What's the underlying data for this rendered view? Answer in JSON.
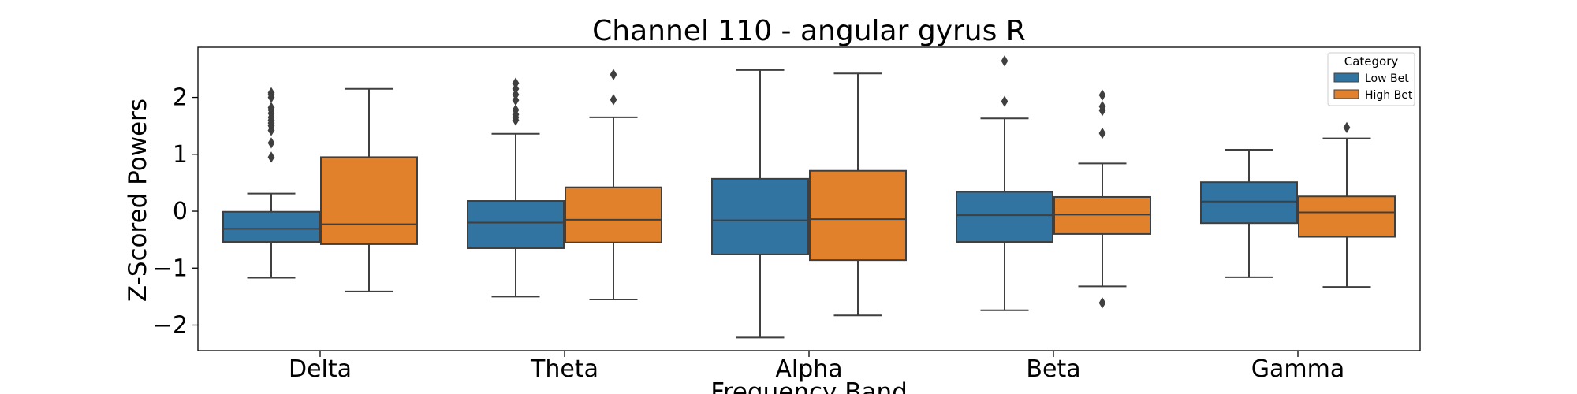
{
  "chart_data": {
    "type": "boxplot",
    "title": "Channel 110 - angular gyrus R",
    "xlabel": "Frequency Band",
    "ylabel": "Z-Scored Powers",
    "categories": [
      "Delta",
      "Theta",
      "Alpha",
      "Beta",
      "Gamma"
    ],
    "ylim": [
      -2.45,
      2.88
    ],
    "yticks": [
      -2,
      -1,
      0,
      1,
      2
    ],
    "ytick_labels": [
      "−2",
      "−1",
      "0",
      "1",
      "2"
    ],
    "grid": false,
    "legend": {
      "title": "Category",
      "placement": "top-right",
      "entries": [
        "Low Bet",
        "High Bet"
      ]
    },
    "series": [
      {
        "name": "Low Bet",
        "color": "#3274a1",
        "boxes": [
          {
            "whisker_low": -1.17,
            "q1": -0.54,
            "median": -0.31,
            "q3": -0.01,
            "whisker_high": 0.31,
            "outliers": [
              0.95,
              1.2,
              1.42,
              1.5,
              1.55,
              1.6,
              1.65,
              1.72,
              1.78,
              1.82,
              2.0,
              2.05,
              2.08
            ]
          },
          {
            "whisker_low": -1.5,
            "q1": -0.65,
            "median": -0.2,
            "q3": 0.18,
            "whisker_high": 1.36,
            "outliers": [
              1.6,
              1.65,
              1.7,
              1.78,
              1.95,
              2.05,
              2.15,
              2.25
            ]
          },
          {
            "whisker_low": -2.22,
            "q1": -0.76,
            "median": -0.16,
            "q3": 0.57,
            "whisker_high": 2.48,
            "outliers": []
          },
          {
            "whisker_low": -1.74,
            "q1": -0.54,
            "median": -0.07,
            "q3": 0.34,
            "whisker_high": 1.63,
            "outliers": [
              1.93,
              2.64
            ]
          },
          {
            "whisker_low": -1.16,
            "q1": -0.21,
            "median": 0.17,
            "q3": 0.51,
            "whisker_high": 1.08,
            "outliers": []
          }
        ]
      },
      {
        "name": "High Bet",
        "color": "#e1812c",
        "boxes": [
          {
            "whisker_low": -1.41,
            "q1": -0.58,
            "median": -0.23,
            "q3": 0.95,
            "whisker_high": 2.15,
            "outliers": []
          },
          {
            "whisker_low": -1.55,
            "q1": -0.55,
            "median": -0.15,
            "q3": 0.42,
            "whisker_high": 1.65,
            "outliers": [
              1.96,
              2.4
            ]
          },
          {
            "whisker_low": -1.83,
            "q1": -0.86,
            "median": -0.14,
            "q3": 0.71,
            "whisker_high": 2.42,
            "outliers": []
          },
          {
            "whisker_low": -1.32,
            "q1": -0.4,
            "median": -0.06,
            "q3": 0.25,
            "whisker_high": 0.84,
            "outliers": [
              1.37,
              1.77,
              1.84,
              2.04,
              -1.61
            ]
          },
          {
            "whisker_low": -1.33,
            "q1": -0.45,
            "median": -0.02,
            "q3": 0.26,
            "whisker_high": 1.28,
            "outliers": [
              1.47
            ]
          }
        ]
      }
    ]
  }
}
